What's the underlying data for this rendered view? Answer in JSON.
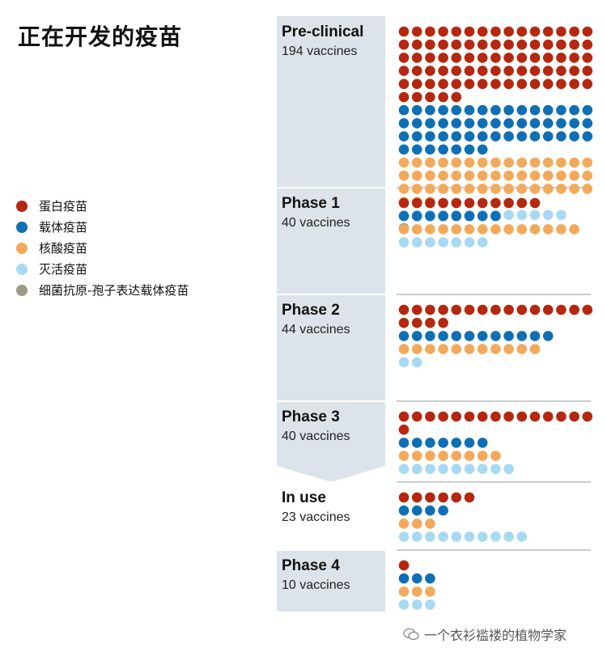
{
  "title": "正在开发的疫苗",
  "legend": [
    {
      "label": "蛋白疫苗",
      "color": "#b5270f"
    },
    {
      "label": "载体疫苗",
      "color": "#0f6fb5"
    },
    {
      "label": "核酸疫苗",
      "color": "#f3a95b"
    },
    {
      "label": "灭活疫苗",
      "color": "#a7d9f2"
    },
    {
      "label": "细菌抗原-孢子表达载体疫苗",
      "color": "#9a9a82"
    }
  ],
  "watermark": "一个衣衫褴褛的植物学家",
  "chart_data": {
    "type": "dot-matrix",
    "title": "正在开发的疫苗",
    "categories": [
      "蛋白疫苗",
      "载体疫苗",
      "核酸疫苗",
      "灭活疫苗",
      "细菌抗原-孢子表达载体疫苗"
    ],
    "colors": [
      "#b5270f",
      "#0f6fb5",
      "#f3a95b",
      "#a7d9f2",
      "#9a9a82"
    ],
    "panels": [
      {
        "name": "Pre-clinical",
        "subtitle": "194 vaccines",
        "total": 194,
        "counts": [
          80,
          52,
          48,
          13,
          1
        ]
      },
      {
        "name": "Phase 1",
        "subtitle": "40 vaccines",
        "total": 40,
        "counts": [
          11,
          8,
          14,
          7,
          0
        ]
      },
      {
        "name": "Phase 2",
        "subtitle": "44 vaccines",
        "total": 44,
        "counts": [
          19,
          12,
          11,
          2,
          0
        ]
      },
      {
        "name": "Phase 3",
        "subtitle": "40 vaccines",
        "total": 40,
        "counts": [
          16,
          7,
          8,
          9,
          0
        ]
      },
      {
        "name": "In use",
        "subtitle": "23 vaccines",
        "total": 23,
        "counts": [
          6,
          4,
          3,
          10,
          0
        ]
      },
      {
        "name": "Phase 4",
        "subtitle": "10 vaccines",
        "total": 10,
        "counts": [
          1,
          3,
          3,
          3,
          0
        ]
      }
    ]
  }
}
